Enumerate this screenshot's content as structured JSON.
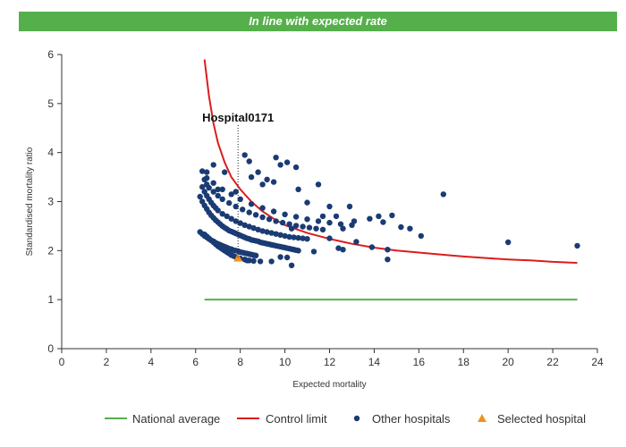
{
  "banner": {
    "text": "In line with expected rate"
  },
  "colors": {
    "banner_bg": "#55b04c",
    "national": "#55b04c",
    "control": "#dd1c1c",
    "other": "#1a3b73",
    "selected": "#f0921e"
  },
  "chart_data": {
    "type": "scatter",
    "xlabel": "Expected mortality",
    "ylabel": "Standardised mortality ratio",
    "xlim": [
      0,
      24
    ],
    "ylim": [
      0,
      6
    ],
    "xticks": [
      "0",
      "2",
      "4",
      "6",
      "8",
      "10",
      "12",
      "14",
      "16",
      "18",
      "20",
      "22",
      "24"
    ],
    "yticks": [
      "0",
      "1",
      "2",
      "3",
      "4",
      "5",
      "6"
    ],
    "grid": false,
    "legend_position": "bottom",
    "annotation": {
      "text": "Hospital0171",
      "x": 7.9,
      "y": 1.85
    },
    "series": [
      {
        "name": "National average",
        "kind": "line",
        "x": [
          6.4,
          23.1
        ],
        "y": [
          1.0,
          1.0
        ]
      },
      {
        "name": "Control limit",
        "kind": "line",
        "x": [
          6.4,
          6.6,
          6.8,
          7.0,
          7.3,
          7.6,
          8.0,
          8.5,
          9.0,
          9.5,
          10.0,
          11.0,
          12.0,
          13.0,
          14.0,
          15.0,
          16.0,
          17.0,
          18.0,
          19.0,
          20.0,
          21.0,
          22.0,
          23.1
        ],
        "y": [
          5.9,
          5.15,
          4.6,
          4.2,
          3.8,
          3.5,
          3.25,
          3.0,
          2.8,
          2.65,
          2.52,
          2.36,
          2.24,
          2.14,
          2.06,
          2.0,
          1.96,
          1.92,
          1.88,
          1.85,
          1.82,
          1.8,
          1.77,
          1.75
        ]
      },
      {
        "name": "Other hospitals",
        "kind": "scatter",
        "x": [
          6.4,
          6.5,
          6.6,
          6.7,
          6.8,
          6.9,
          7.0,
          7.1,
          7.2,
          7.3,
          7.4,
          7.5,
          7.6,
          7.7,
          7.8,
          8.0,
          8.2,
          8.4,
          8.6,
          8.9,
          6.2,
          6.3,
          6.4,
          6.5,
          6.6,
          6.7,
          6.8,
          6.9,
          7.0,
          7.1,
          7.2,
          7.3,
          7.4,
          7.5,
          7.6,
          7.7,
          7.8,
          7.9,
          8.0,
          8.1,
          8.2,
          8.3,
          8.4,
          8.5,
          8.6,
          8.7,
          6.2,
          6.3,
          6.4,
          6.5,
          6.6,
          6.7,
          6.8,
          6.9,
          7.0,
          7.1,
          7.2,
          7.3,
          7.4,
          7.5,
          7.6,
          7.7,
          7.8,
          7.9,
          8.0,
          8.1,
          8.2,
          8.3,
          8.4,
          8.5,
          8.6,
          8.7,
          8.8,
          8.9,
          9.0,
          9.1,
          9.2,
          9.3,
          9.4,
          9.5,
          9.6,
          9.7,
          9.8,
          9.9,
          10.0,
          10.1,
          10.2,
          10.3,
          10.4,
          10.5,
          10.6,
          6.3,
          6.4,
          6.5,
          6.6,
          6.7,
          6.8,
          6.9,
          7.0,
          7.2,
          7.4,
          7.6,
          7.8,
          8.0,
          8.2,
          8.4,
          8.6,
          8.8,
          9.0,
          9.2,
          9.4,
          9.6,
          9.8,
          10.0,
          10.2,
          10.4,
          10.6,
          10.8,
          11.0,
          6.4,
          6.5,
          6.6,
          6.8,
          7.0,
          7.2,
          7.5,
          7.8,
          8.1,
          8.4,
          8.7,
          9.0,
          9.3,
          9.6,
          9.9,
          10.2,
          10.5,
          10.8,
          11.1,
          11.4,
          11.7,
          6.3,
          6.5,
          6.8,
          7.2,
          7.6,
          8.0,
          8.5,
          9.0,
          9.5,
          10.0,
          10.5,
          11.0,
          11.5,
          12.0,
          12.5,
          13.0,
          6.5,
          6.8,
          7.0,
          7.3,
          7.8,
          8.2,
          8.4,
          8.5,
          8.8,
          9.0,
          9.2,
          9.5,
          9.6,
          9.8,
          10.1,
          10.5,
          10.6,
          11.0,
          11.5,
          11.7,
          12.0,
          12.3,
          12.6,
          12.9,
          13.1,
          13.8,
          14.2,
          14.4,
          14.8,
          15.2,
          15.6,
          16.1,
          17.1,
          20.0,
          23.1,
          8.3,
          9.4,
          9.8,
          10.1,
          10.3,
          11.3,
          12.0,
          12.4,
          12.6,
          13.2,
          13.9,
          14.6,
          14.6,
          10.3
        ],
        "y": [
          2.33,
          2.29,
          2.25,
          2.21,
          2.17,
          2.13,
          2.09,
          2.06,
          2.03,
          2.0,
          1.97,
          1.94,
          1.91,
          1.89,
          1.87,
          1.84,
          1.82,
          1.8,
          1.79,
          1.78,
          2.38,
          2.34,
          2.3,
          2.27,
          2.24,
          2.21,
          2.19,
          2.16,
          2.14,
          2.12,
          2.1,
          2.08,
          2.06,
          2.04,
          2.03,
          2.01,
          2.0,
          1.99,
          1.97,
          1.96,
          1.95,
          1.94,
          1.93,
          1.92,
          1.91,
          1.9,
          3.1,
          3.0,
          2.92,
          2.85,
          2.78,
          2.72,
          2.67,
          2.62,
          2.58,
          2.54,
          2.5,
          2.47,
          2.44,
          2.41,
          2.39,
          2.37,
          2.35,
          2.33,
          2.31,
          2.29,
          2.27,
          2.25,
          2.24,
          2.22,
          2.21,
          2.2,
          2.19,
          2.17,
          2.16,
          2.15,
          2.14,
          2.13,
          2.12,
          2.11,
          2.1,
          2.09,
          2.08,
          2.07,
          2.06,
          2.05,
          2.04,
          2.03,
          2.02,
          2.01,
          2.0,
          3.3,
          3.2,
          3.12,
          3.05,
          2.98,
          2.92,
          2.87,
          2.82,
          2.75,
          2.7,
          2.65,
          2.6,
          2.56,
          2.52,
          2.49,
          2.46,
          2.43,
          2.4,
          2.38,
          2.36,
          2.34,
          2.32,
          2.3,
          2.28,
          2.27,
          2.26,
          2.25,
          2.24,
          3.45,
          3.35,
          3.28,
          3.2,
          3.12,
          3.05,
          2.97,
          2.9,
          2.84,
          2.78,
          2.73,
          2.68,
          2.64,
          2.6,
          2.57,
          2.54,
          2.51,
          2.49,
          2.47,
          2.45,
          2.43,
          3.62,
          3.48,
          3.38,
          3.25,
          3.15,
          3.05,
          2.95,
          2.87,
          2.8,
          2.74,
          2.69,
          2.64,
          2.6,
          2.57,
          2.54,
          2.52,
          3.6,
          3.75,
          3.25,
          3.6,
          3.2,
          3.95,
          3.82,
          3.5,
          3.6,
          3.35,
          3.45,
          3.4,
          3.9,
          3.75,
          3.8,
          3.7,
          3.25,
          2.98,
          3.35,
          2.7,
          2.9,
          2.7,
          2.45,
          2.9,
          2.6,
          2.65,
          2.7,
          2.58,
          2.72,
          2.48,
          2.45,
          2.3,
          3.15,
          2.17,
          2.1,
          1.8,
          1.78,
          1.87,
          1.86,
          1.7,
          1.98,
          2.25,
          2.05,
          2.02,
          2.18,
          2.07,
          1.82,
          2.02,
          2.45
        ]
      },
      {
        "name": "Selected hospital",
        "kind": "marker",
        "x": [
          7.9
        ],
        "y": [
          1.85
        ]
      }
    ]
  }
}
